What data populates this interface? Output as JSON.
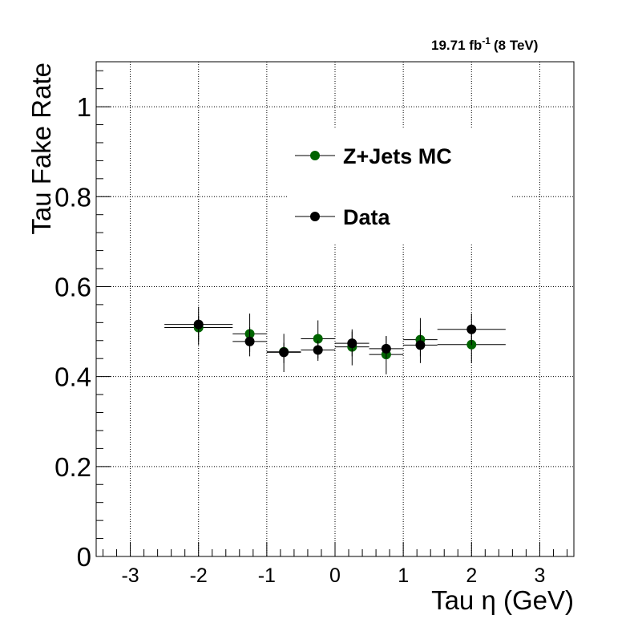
{
  "chart_data": {
    "type": "scatter",
    "lumi_text": "19.71 fb",
    "lumi_exponent": "-1",
    "energy_text": "(8 TeV)",
    "xlabel": "Tau η (GeV)",
    "ylabel": "Tau Fake Rate",
    "xlim": [
      -3.5,
      3.5
    ],
    "ylim": [
      0,
      1.1
    ],
    "x_ticks": [
      -3,
      -2,
      -1,
      0,
      1,
      2,
      3
    ],
    "x_tick_labels": [
      "-3",
      "-2",
      "-1",
      "0",
      "1",
      "2",
      "3"
    ],
    "y_ticks": [
      0,
      0.2,
      0.4,
      0.6,
      0.8,
      1
    ],
    "y_tick_labels": [
      "0",
      "0.2",
      "0.4",
      "0.6",
      "0.8",
      "1"
    ],
    "grid": true,
    "legend_position": "top-center",
    "series": [
      {
        "name": "Z+Jets MC",
        "color": "#006400",
        "points": [
          {
            "x": -2.0,
            "xlo": -2.5,
            "xhi": -1.5,
            "y": 0.509,
            "ylo": 0.48,
            "yhi": 0.535
          },
          {
            "x": -1.25,
            "xlo": -1.5,
            "xhi": -1.0,
            "y": 0.495,
            "ylo": 0.455,
            "yhi": 0.54
          },
          {
            "x": -0.75,
            "xlo": -1.0,
            "xhi": -0.5,
            "y": 0.455,
            "ylo": 0.43,
            "yhi": 0.475
          },
          {
            "x": -0.25,
            "xlo": -0.5,
            "xhi": 0.0,
            "y": 0.484,
            "ylo": 0.44,
            "yhi": 0.525
          },
          {
            "x": 0.25,
            "xlo": 0.0,
            "xhi": 0.5,
            "y": 0.466,
            "ylo": 0.425,
            "yhi": 0.5
          },
          {
            "x": 0.75,
            "xlo": 0.5,
            "xhi": 1.0,
            "y": 0.449,
            "ylo": 0.405,
            "yhi": 0.49
          },
          {
            "x": 1.25,
            "xlo": 1.0,
            "xhi": 1.5,
            "y": 0.482,
            "ylo": 0.445,
            "yhi": 0.53
          },
          {
            "x": 2.0,
            "xlo": 1.5,
            "xhi": 2.5,
            "y": 0.471,
            "ylo": 0.43,
            "yhi": 0.51
          }
        ]
      },
      {
        "name": "Data",
        "color": "#000000",
        "points": [
          {
            "x": -2.0,
            "xlo": -2.5,
            "xhi": -1.5,
            "y": 0.516,
            "ylo": 0.47,
            "yhi": 0.555
          },
          {
            "x": -1.25,
            "xlo": -1.5,
            "xhi": -1.0,
            "y": 0.478,
            "ylo": 0.445,
            "yhi": 0.51
          },
          {
            "x": -0.75,
            "xlo": -1.0,
            "xhi": -0.5,
            "y": 0.454,
            "ylo": 0.41,
            "yhi": 0.495
          },
          {
            "x": -0.25,
            "xlo": -0.5,
            "xhi": 0.0,
            "y": 0.459,
            "ylo": 0.435,
            "yhi": 0.48
          },
          {
            "x": 0.25,
            "xlo": 0.0,
            "xhi": 0.5,
            "y": 0.474,
            "ylo": 0.445,
            "yhi": 0.505
          },
          {
            "x": 0.75,
            "xlo": 0.5,
            "xhi": 1.0,
            "y": 0.462,
            "ylo": 0.44,
            "yhi": 0.49
          },
          {
            "x": 1.25,
            "xlo": 1.0,
            "xhi": 1.5,
            "y": 0.47,
            "ylo": 0.43,
            "yhi": 0.505
          },
          {
            "x": 2.0,
            "xlo": 1.5,
            "xhi": 2.5,
            "y": 0.505,
            "ylo": 0.47,
            "yhi": 0.54
          }
        ]
      }
    ],
    "legend": [
      {
        "label": "Z+Jets MC",
        "color": "#006400"
      },
      {
        "label": "Data",
        "color": "#000000"
      }
    ]
  }
}
